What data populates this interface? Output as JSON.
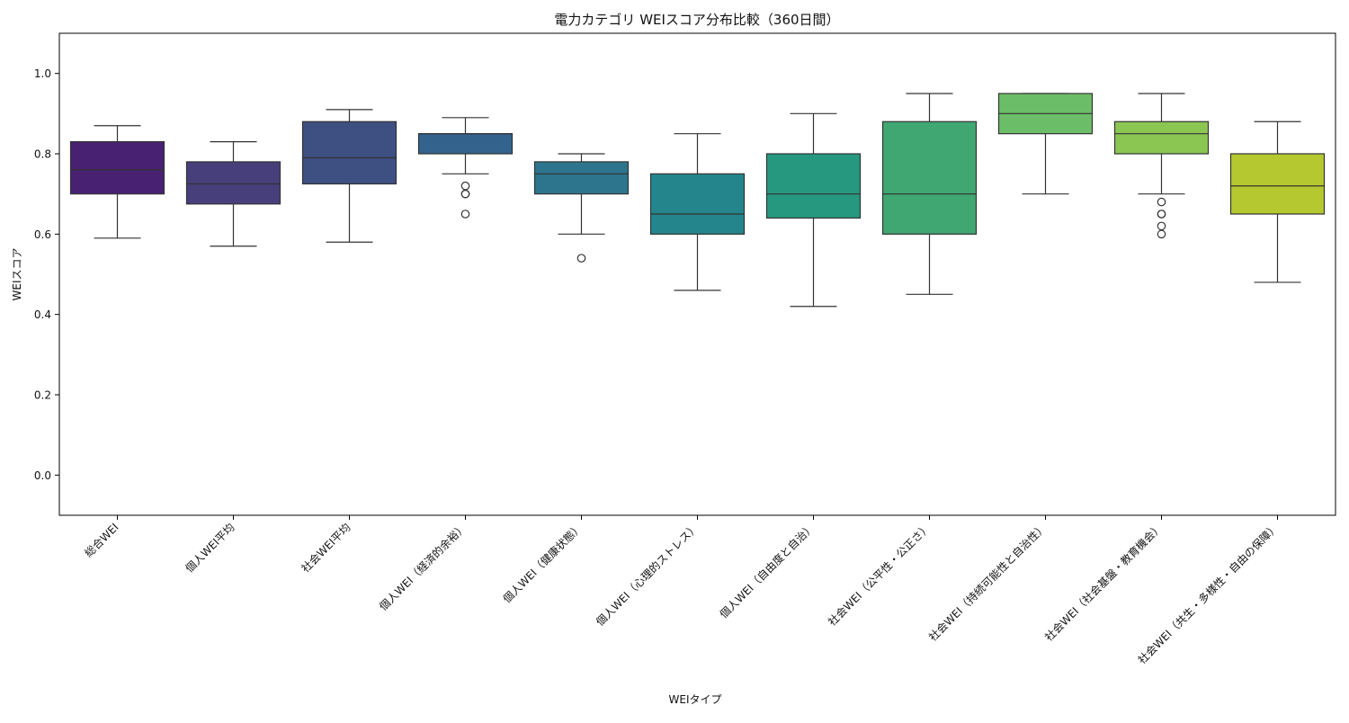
{
  "chart_data": {
    "type": "box",
    "title": "電力カテゴリ WEIスコア分布比較（360日間）",
    "xlabel": "WEIタイプ",
    "ylabel": "WEIスコア",
    "ylim": [
      -0.1,
      1.1
    ],
    "yticks": [
      "0.0",
      "0.2",
      "0.4",
      "0.6",
      "0.8",
      "1.0"
    ],
    "ytick_values": [
      0.0,
      0.2,
      0.4,
      0.6,
      0.8,
      1.0
    ],
    "grid": false,
    "categories": [
      "総合WEI",
      "個人WEI平均",
      "社会WEI平均",
      "個人WEI（経済的余裕）",
      "個人WEI（健康状態）",
      "個人WEI（心理的ストレス）",
      "個人WEI（自由度と自治）",
      "社会WEI（公平性・公正さ）",
      "社会WEI（持続可能性と自治性）",
      "社会WEI（社会基盤・教育機会）",
      "社会WEI（共生・多様性・自由の保障）"
    ],
    "boxes": [
      {
        "whisker_low": 0.59,
        "q1": 0.7,
        "median": 0.76,
        "q3": 0.83,
        "whisker_high": 0.87,
        "outliers": [],
        "color": "#482173"
      },
      {
        "whisker_low": 0.57,
        "q1": 0.675,
        "median": 0.725,
        "q3": 0.78,
        "whisker_high": 0.83,
        "outliers": [],
        "color": "#463f7b"
      },
      {
        "whisker_low": 0.58,
        "q1": 0.725,
        "median": 0.79,
        "q3": 0.88,
        "whisker_high": 0.91,
        "outliers": [],
        "color": "#3e4f82"
      },
      {
        "whisker_low": 0.75,
        "q1": 0.8,
        "median": 0.85,
        "q3": 0.85,
        "whisker_high": 0.89,
        "outliers": [
          0.72,
          0.7,
          0.7,
          0.65
        ],
        "color": "#33638d"
      },
      {
        "whisker_low": 0.6,
        "q1": 0.7,
        "median": 0.75,
        "q3": 0.78,
        "whisker_high": 0.8,
        "outliers": [
          0.54
        ],
        "color": "#2d758c"
      },
      {
        "whisker_low": 0.46,
        "q1": 0.6,
        "median": 0.65,
        "q3": 0.75,
        "whisker_high": 0.85,
        "outliers": [],
        "color": "#24868c"
      },
      {
        "whisker_low": 0.42,
        "q1": 0.64,
        "median": 0.7,
        "q3": 0.8,
        "whisker_high": 0.9,
        "outliers": [],
        "color": "#26987f"
      },
      {
        "whisker_low": 0.45,
        "q1": 0.6,
        "median": 0.7,
        "q3": 0.88,
        "whisker_high": 0.95,
        "outliers": [],
        "color": "#40a672"
      },
      {
        "whisker_low": 0.7,
        "q1": 0.85,
        "median": 0.9,
        "q3": 0.95,
        "whisker_high": 0.95,
        "outliers": [],
        "color": "#6cbd68"
      },
      {
        "whisker_low": 0.7,
        "q1": 0.8,
        "median": 0.85,
        "q3": 0.88,
        "whisker_high": 0.95,
        "outliers": [
          0.68,
          0.65,
          0.65,
          0.62,
          0.6
        ],
        "color": "#8bc653"
      },
      {
        "whisker_low": 0.48,
        "q1": 0.65,
        "median": 0.72,
        "q3": 0.8,
        "whisker_high": 0.88,
        "outliers": [],
        "color": "#b5c82f"
      }
    ]
  }
}
